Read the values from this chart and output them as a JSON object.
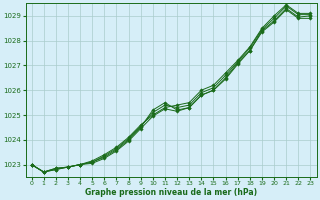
{
  "title": "Graphe pression niveau de la mer (hPa)",
  "background_color": "#d6eef8",
  "grid_color": "#aacccc",
  "line_color": "#1a6b1a",
  "marker_color": "#1a6b1a",
  "xlim": [
    -0.5,
    23.5
  ],
  "ylim": [
    1022.5,
    1029.5
  ],
  "xticks": [
    0,
    1,
    2,
    3,
    4,
    5,
    6,
    7,
    8,
    9,
    10,
    11,
    12,
    13,
    14,
    15,
    16,
    17,
    18,
    19,
    20,
    21,
    22,
    23
  ],
  "yticks": [
    1023,
    1024,
    1025,
    1026,
    1027,
    1028,
    1029
  ],
  "series": [
    [
      1023.0,
      1022.7,
      1022.8,
      1022.9,
      1023.0,
      1023.1,
      1023.3,
      1023.6,
      1024.0,
      1024.5,
      1025.2,
      1025.5,
      1025.2,
      1025.3,
      1025.8,
      1026.0,
      1026.5,
      1027.1,
      1027.6,
      1028.4,
      1028.8,
      1029.3,
      1028.95,
      1029.0
    ],
    [
      1023.0,
      1022.7,
      1022.8,
      1022.9,
      1023.0,
      1023.15,
      1023.4,
      1023.7,
      1024.1,
      1024.6,
      1025.0,
      1025.3,
      1025.4,
      1025.5,
      1026.0,
      1026.2,
      1026.7,
      1027.2,
      1027.75,
      1028.5,
      1029.0,
      1029.45,
      1029.1,
      1029.1
    ],
    [
      1023.0,
      1022.7,
      1022.85,
      1022.9,
      1023.0,
      1023.1,
      1023.35,
      1023.65,
      1024.05,
      1024.55,
      1025.1,
      1025.4,
      1025.3,
      1025.4,
      1025.9,
      1026.1,
      1026.6,
      1027.15,
      1027.7,
      1028.45,
      1028.9,
      1029.4,
      1029.05,
      1029.05
    ],
    [
      1023.0,
      1022.7,
      1022.85,
      1022.9,
      1023.0,
      1023.05,
      1023.25,
      1023.55,
      1023.95,
      1024.45,
      1024.95,
      1025.25,
      1025.15,
      1025.3,
      1025.8,
      1026.0,
      1026.45,
      1027.05,
      1027.6,
      1028.35,
      1028.75,
      1029.25,
      1028.9,
      1028.9
    ]
  ]
}
